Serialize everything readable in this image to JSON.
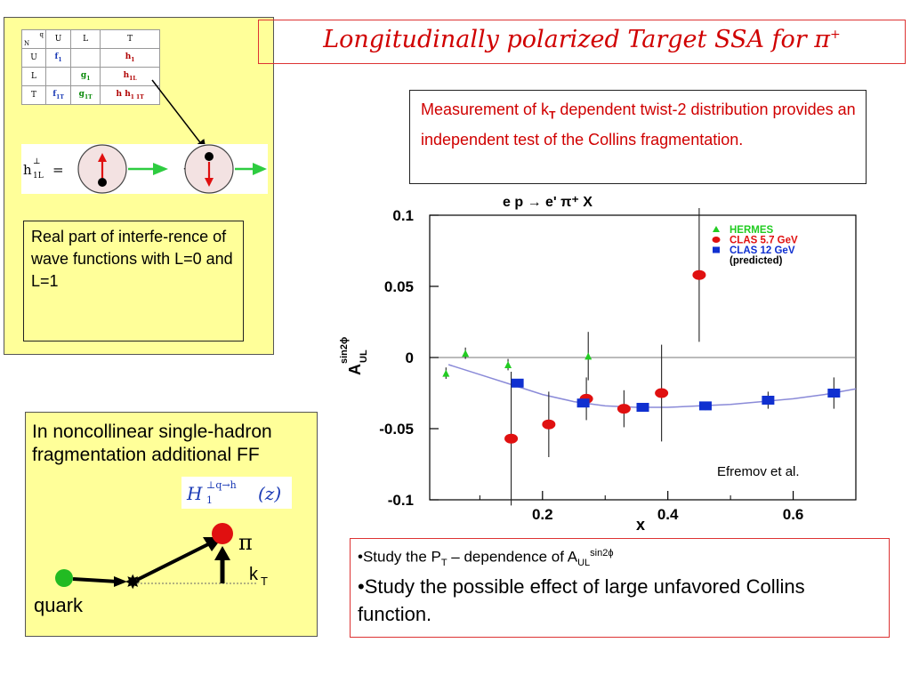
{
  "title": {
    "main": "Longitudinally  polarized  Target SSA for π",
    "sup": "+"
  },
  "tmd_table": {
    "corner_n": "N",
    "corner_q": "q",
    "col_headers": [
      "U",
      "L",
      "T"
    ],
    "rows": [
      {
        "label": "U",
        "cells": [
          "f",
          "",
          "h"
        ]
      },
      {
        "label": "L",
        "cells": [
          "",
          "g",
          "h"
        ]
      },
      {
        "label": "T",
        "cells": [
          "f",
          "g",
          "h  h"
        ]
      }
    ]
  },
  "h1L_diagram": {
    "lhs": "h",
    "lhs_sup": "⊥",
    "lhs_sub": "1L",
    "equals": "=",
    "minus": "−"
  },
  "interference_text": "Real part of interfe-rence of wave functions with L=0 and L=1",
  "measurement_text": {
    "part1": "Measurement of k",
    "sub": "T",
    "part2": " dependent twist-2 distribution provides an independent test of the Collins fragmentation."
  },
  "noncollinear_text": "In noncollinear single-hadron fragmentation additional FF",
  "ff_formula": {
    "H": "H",
    "sub": "1",
    "sup": "⊥q→h",
    "arg": "(z)"
  },
  "fragmentation_diagram": {
    "pi_label": "π",
    "kt_label": "k",
    "kt_sub": "T",
    "quark_label": "quark"
  },
  "study": {
    "line1_a": "•Study the P",
    "line1_sub1": "T",
    "line1_b": " – dependence of A",
    "line1_sub2": "UL",
    "line1_sup": "sin2ϕ",
    "line2": "•Study the possible effect of large unfavored Collins function."
  },
  "credit": "Efremov et al.",
  "chart_data": {
    "type": "scatter",
    "title": "e p → e' π⁺ X",
    "xlabel": "x",
    "ylabel_main": "A",
    "ylabel_sup": "sin2ϕ",
    "ylabel_sub": "UL",
    "xlim": [
      0.02,
      0.7
    ],
    "ylim": [
      -0.1,
      0.1
    ],
    "xticks": [
      0.2,
      0.4,
      0.6
    ],
    "xtick_labels": [
      "0.2",
      "0.4",
      "0.6"
    ],
    "yticks": [
      0.1,
      0.05,
      0,
      -0.05,
      -0.1
    ],
    "ytick_labels": [
      "0.1",
      "0.05",
      "0",
      "-0.05",
      "-0.1"
    ],
    "legend_placement": "top-right",
    "legend": [
      {
        "label": "HERMES",
        "color": "#22cc22",
        "marker": "triangle"
      },
      {
        "label": "CLAS 5.7 GeV",
        "color": "#e01010",
        "marker": "circle"
      },
      {
        "label": "CLAS 12 GeV",
        "color": "#1030d0",
        "marker": "square"
      },
      {
        "label": "(predicted)",
        "color": "#000000",
        "marker": "none"
      }
    ],
    "series": [
      {
        "name": "HERMES",
        "marker": "triangle",
        "color": "#22cc22",
        "points": [
          {
            "x": 0.046,
            "y": -0.011,
            "err": 0.004
          },
          {
            "x": 0.077,
            "y": 0.003,
            "err": 0.004
          },
          {
            "x": 0.145,
            "y": -0.005,
            "err": 0.004
          },
          {
            "x": 0.273,
            "y": 0.001,
            "err": 0.017
          }
        ]
      },
      {
        "name": "CLAS 5.7 GeV",
        "marker": "circle",
        "color": "#e01010",
        "points": [
          {
            "x": 0.15,
            "y": -0.057,
            "err": 0.047
          },
          {
            "x": 0.21,
            "y": -0.047,
            "err": 0.023
          },
          {
            "x": 0.27,
            "y": -0.029,
            "err": 0.015
          },
          {
            "x": 0.33,
            "y": -0.036,
            "err": 0.013
          },
          {
            "x": 0.39,
            "y": -0.025,
            "err": 0.034
          },
          {
            "x": 0.45,
            "y": 0.058,
            "err": 0.047
          }
        ]
      },
      {
        "name": "CLAS 12 GeV",
        "marker": "square",
        "color": "#1030d0",
        "points": [
          {
            "x": 0.16,
            "y": -0.018,
            "err": 0.0
          },
          {
            "x": 0.265,
            "y": -0.032,
            "err": 0.002
          },
          {
            "x": 0.36,
            "y": -0.035,
            "err": 0.002
          },
          {
            "x": 0.46,
            "y": -0.034,
            "err": 0.003
          },
          {
            "x": 0.56,
            "y": -0.03,
            "err": 0.006
          },
          {
            "x": 0.665,
            "y": -0.025,
            "err": 0.011
          }
        ]
      }
    ],
    "curve": {
      "x": [
        0.05,
        0.1,
        0.15,
        0.2,
        0.25,
        0.3,
        0.35,
        0.4,
        0.45,
        0.5,
        0.55,
        0.6,
        0.65,
        0.7
      ],
      "y": [
        -0.005,
        -0.012,
        -0.019,
        -0.026,
        -0.031,
        -0.034,
        -0.035,
        -0.035,
        -0.034,
        -0.033,
        -0.031,
        -0.029,
        -0.026,
        -0.022
      ]
    }
  }
}
